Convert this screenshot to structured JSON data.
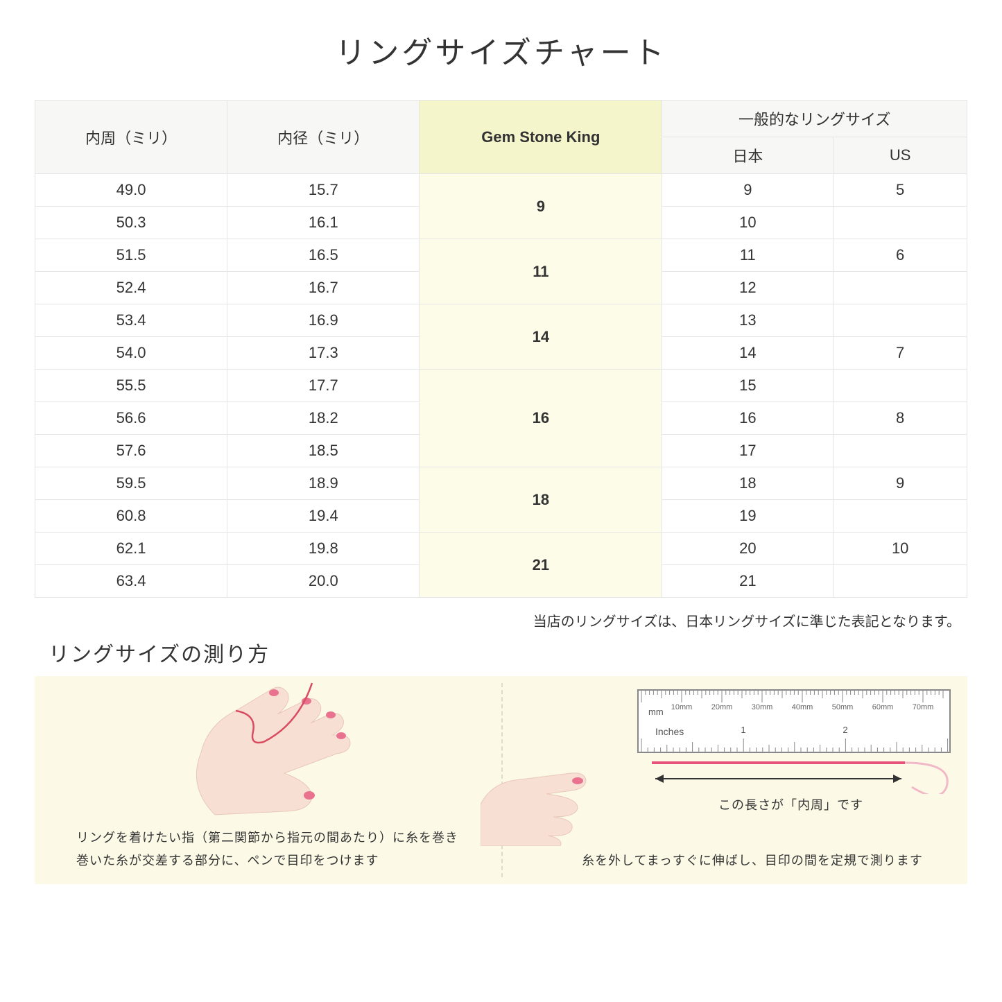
{
  "title": "リングサイズチャート",
  "table": {
    "header": {
      "circumference": "内周（ミリ）",
      "diameter": "内径（ミリ）",
      "gsk": "Gem Stone King",
      "general_group": "一般的なリングサイズ",
      "japan": "日本",
      "us": "US"
    },
    "header_bg": "#f7f7f5",
    "gsk_header_bg": "#f5f5cc",
    "gsk_cell_bg": "#fcfce9",
    "border_color": "#e5e5e5",
    "font_size": 22,
    "rows": [
      {
        "circ": "49.0",
        "dia": "15.7",
        "gsk": "9",
        "gsk_span": 2,
        "jp": "9",
        "us": "5"
      },
      {
        "circ": "50.3",
        "dia": "16.1",
        "jp": "10",
        "us": ""
      },
      {
        "circ": "51.5",
        "dia": "16.5",
        "gsk": "11",
        "gsk_span": 2,
        "jp": "11",
        "us": "6"
      },
      {
        "circ": "52.4",
        "dia": "16.7",
        "jp": "12",
        "us": ""
      },
      {
        "circ": "53.4",
        "dia": "16.9",
        "gsk": "14",
        "gsk_span": 2,
        "jp": "13",
        "us": ""
      },
      {
        "circ": "54.0",
        "dia": "17.3",
        "jp": "14",
        "us": "7"
      },
      {
        "circ": "55.5",
        "dia": "17.7",
        "gsk": "16",
        "gsk_span": 3,
        "jp": "15",
        "us": ""
      },
      {
        "circ": "56.6",
        "dia": "18.2",
        "jp": "16",
        "us": "8"
      },
      {
        "circ": "57.6",
        "dia": "18.5",
        "jp": "17",
        "us": ""
      },
      {
        "circ": "59.5",
        "dia": "18.9",
        "gsk": "18",
        "gsk_span": 2,
        "jp": "18",
        "us": "9"
      },
      {
        "circ": "60.8",
        "dia": "19.4",
        "jp": "19",
        "us": ""
      },
      {
        "circ": "62.1",
        "dia": "19.8",
        "gsk": "21",
        "gsk_span": 2,
        "jp": "20",
        "us": "10"
      },
      {
        "circ": "63.4",
        "dia": "20.0",
        "jp": "21",
        "us": ""
      }
    ]
  },
  "note": "当店のリングサイズは、日本リングサイズに準じた表記となります。",
  "howto": {
    "title": "リングサイズの測り方",
    "bg": "#fcfae7",
    "divider_color": "#dcdccc",
    "left_caption_line1": "リングを着けたい指（第二関節から指元の間あたり）に糸を巻き",
    "left_caption_line2": "巻いた糸が交差する部分に、ペンで目印をつけます",
    "right_caption": "糸を外してまっすぐに伸ばし、目印の間を定規で測ります",
    "ruler_label": "この長さが「内周」です",
    "ruler": {
      "unit_mm": "mm",
      "unit_in": "Inches",
      "mm_ticks": [
        "10mm",
        "20mm",
        "30mm",
        "40mm",
        "50mm",
        "60mm",
        "70mm"
      ],
      "inch_ticks": [
        "1",
        "2"
      ],
      "outline_color": "#888888",
      "thread_color": "#e6527a"
    },
    "hand_colors": {
      "skin": "#f8dfd4",
      "nail": "#e9738f",
      "thread": "#d94b5f"
    }
  }
}
